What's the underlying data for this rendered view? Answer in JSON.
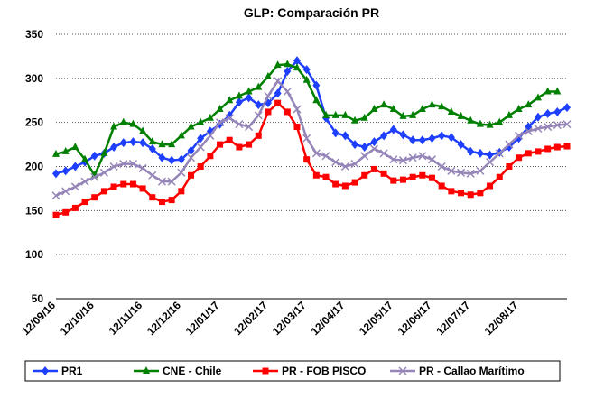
{
  "chart_data": {
    "type": "line",
    "title": "GLP: Comparación PR",
    "categories": [
      "12/09/16",
      null,
      null,
      null,
      "12/10/16",
      null,
      null,
      null,
      null,
      "12/11/16",
      null,
      null,
      null,
      "12/12/16",
      null,
      null,
      null,
      "12/01/17",
      null,
      null,
      null,
      null,
      "12/02/17",
      null,
      null,
      null,
      "12/03/17",
      null,
      null,
      null,
      "12/04/17",
      null,
      null,
      null,
      null,
      "12/05/17",
      null,
      null,
      null,
      "12/06/17",
      null,
      null,
      null,
      "12/07/17",
      null,
      null,
      null,
      null,
      "12/08/17",
      null,
      null,
      null,
      null,
      null
    ],
    "series": [
      {
        "name": "PR1",
        "color": "#1f3fff",
        "marker": "diamond",
        "values": [
          192,
          195,
          200,
          205,
          212,
          215,
          222,
          227,
          228,
          227,
          220,
          210,
          207,
          208,
          218,
          232,
          240,
          248,
          258,
          273,
          278,
          270,
          272,
          283,
          308,
          320,
          310,
          292,
          255,
          238,
          235,
          225,
          222,
          228,
          235,
          242,
          236,
          230,
          230,
          232,
          235,
          233,
          225,
          217,
          215,
          213,
          216,
          222,
          232,
          245,
          256,
          260,
          262,
          267
        ]
      },
      {
        "name": "CNE - Chile",
        "color": "#008000",
        "marker": "triangle",
        "values": [
          214,
          217,
          222,
          208,
          190,
          215,
          245,
          250,
          248,
          240,
          228,
          225,
          225,
          235,
          245,
          250,
          255,
          265,
          275,
          280,
          285,
          290,
          302,
          315,
          316,
          312,
          298,
          275,
          258,
          258,
          258,
          252,
          255,
          265,
          270,
          265,
          257,
          258,
          265,
          270,
          268,
          262,
          257,
          252,
          248,
          247,
          250,
          258,
          265,
          270,
          278,
          285,
          285,
          null
        ]
      },
      {
        "name": "PR - FOB PISCO",
        "color": "#ff0000",
        "marker": "square",
        "values": [
          145,
          148,
          153,
          160,
          165,
          172,
          177,
          180,
          180,
          175,
          165,
          160,
          162,
          172,
          190,
          200,
          212,
          225,
          230,
          222,
          225,
          235,
          262,
          272,
          262,
          245,
          208,
          190,
          188,
          180,
          178,
          182,
          190,
          197,
          192,
          184,
          185,
          188,
          190,
          187,
          178,
          172,
          170,
          168,
          170,
          178,
          188,
          200,
          210,
          215,
          217,
          220,
          222,
          223
        ]
      },
      {
        "name": "PR - Callao Marítimo",
        "color": "#9585b8",
        "marker": "x",
        "values": [
          167,
          172,
          177,
          183,
          188,
          193,
          200,
          203,
          203,
          198,
          190,
          183,
          183,
          193,
          210,
          222,
          235,
          250,
          255,
          248,
          245,
          258,
          280,
          297,
          285,
          265,
          232,
          215,
          212,
          205,
          200,
          203,
          212,
          220,
          215,
          208,
          207,
          210,
          212,
          208,
          200,
          195,
          193,
          192,
          195,
          205,
          215,
          225,
          235,
          240,
          243,
          245,
          247,
          248
        ]
      }
    ],
    "ylim": [
      50,
      350
    ],
    "yticks": [
      50,
      100,
      150,
      200,
      250,
      300,
      350
    ],
    "grid": true,
    "legend": "bottom"
  }
}
